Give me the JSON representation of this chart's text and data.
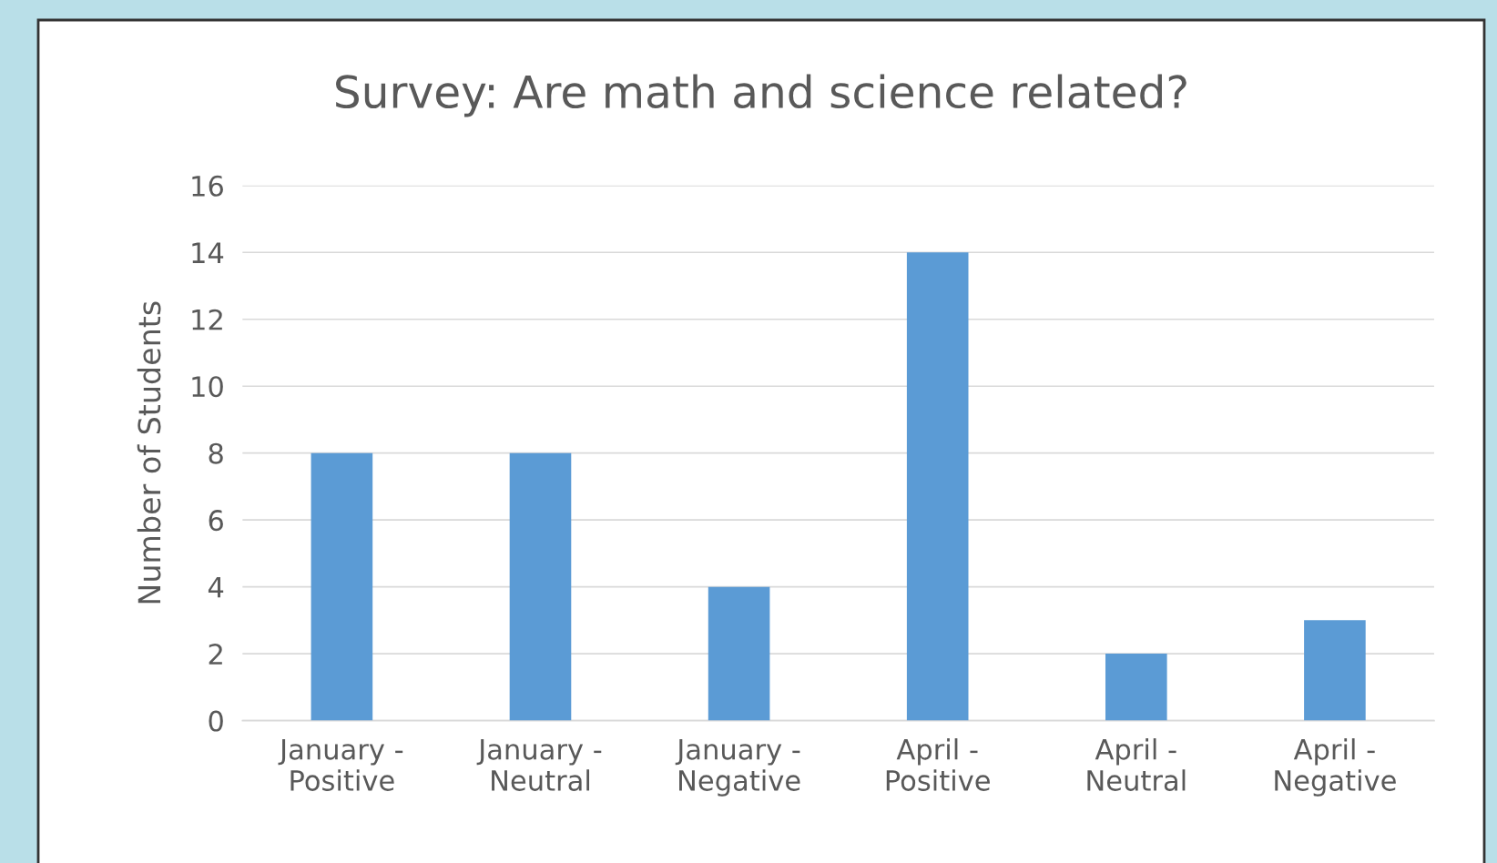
{
  "chart_data": {
    "type": "bar",
    "title": "Survey: Are math and science related?",
    "ylabel": "Number of Students",
    "categories": [
      "January - Positive",
      "January - Neutral",
      "January - Negative",
      "April - Positive",
      "April - Neutral",
      "April - Negative"
    ],
    "values": [
      8,
      8,
      4,
      14,
      2,
      3
    ],
    "color": "#5b9bd5",
    "ylim": [
      0,
      16
    ],
    "yticks": [
      0,
      2,
      4,
      6,
      8,
      10,
      12,
      14,
      16
    ],
    "grid": "y",
    "legend": false
  }
}
